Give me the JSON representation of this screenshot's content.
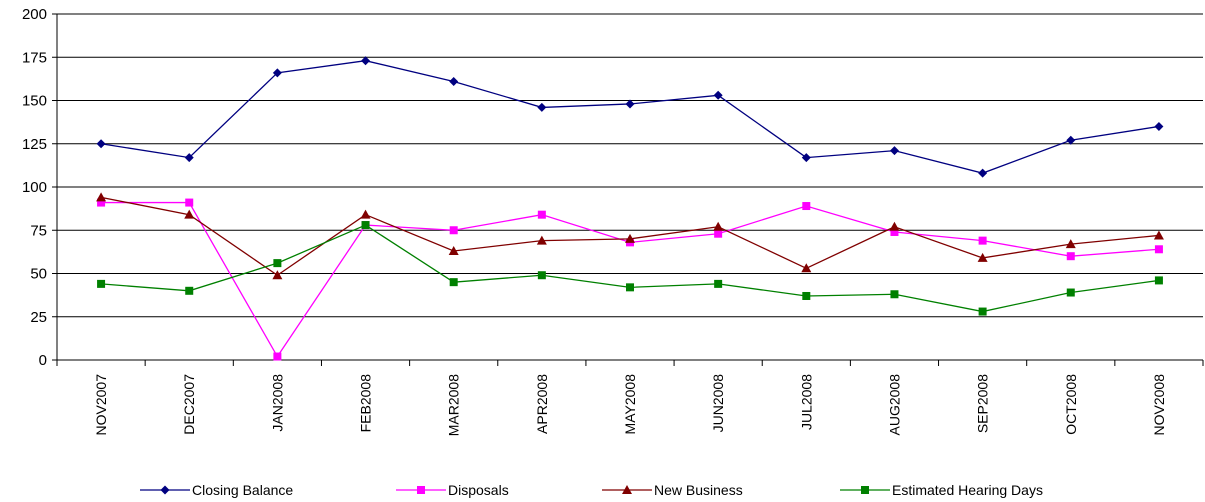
{
  "chart_data": {
    "type": "line",
    "categories": [
      "NOV2007",
      "DEC2007",
      "JAN2008",
      "FEB2008",
      "MAR2008",
      "APR2008",
      "MAY2008",
      "JUN2008",
      "JUL2008",
      "AUG2008",
      "SEP2008",
      "OCT2008",
      "NOV2008"
    ],
    "ylim": [
      0,
      200
    ],
    "yticks": [
      0,
      25,
      50,
      75,
      100,
      125,
      150,
      175,
      200
    ],
    "grid": true,
    "legend": "bottom",
    "series": [
      {
        "name": "Closing Balance",
        "values": [
          125,
          117,
          166,
          173,
          161,
          146,
          148,
          153,
          117,
          121,
          108,
          127,
          135
        ],
        "color": "#000080",
        "marker": "diamond"
      },
      {
        "name": "Disposals",
        "values": [
          91,
          91,
          2,
          78,
          75,
          84,
          68,
          73,
          89,
          74,
          69,
          60,
          64
        ],
        "color": "#FF00FF",
        "marker": "square"
      },
      {
        "name": "New Business",
        "values": [
          94,
          84,
          49,
          84,
          63,
          69,
          70,
          77,
          53,
          77,
          59,
          67,
          72
        ],
        "color": "#800000",
        "marker": "triangle"
      },
      {
        "name": "Estimated Hearing Days",
        "values": [
          44,
          40,
          56,
          78,
          45,
          49,
          42,
          44,
          37,
          38,
          28,
          39,
          46
        ],
        "color": "#008000",
        "marker": "square"
      }
    ]
  }
}
